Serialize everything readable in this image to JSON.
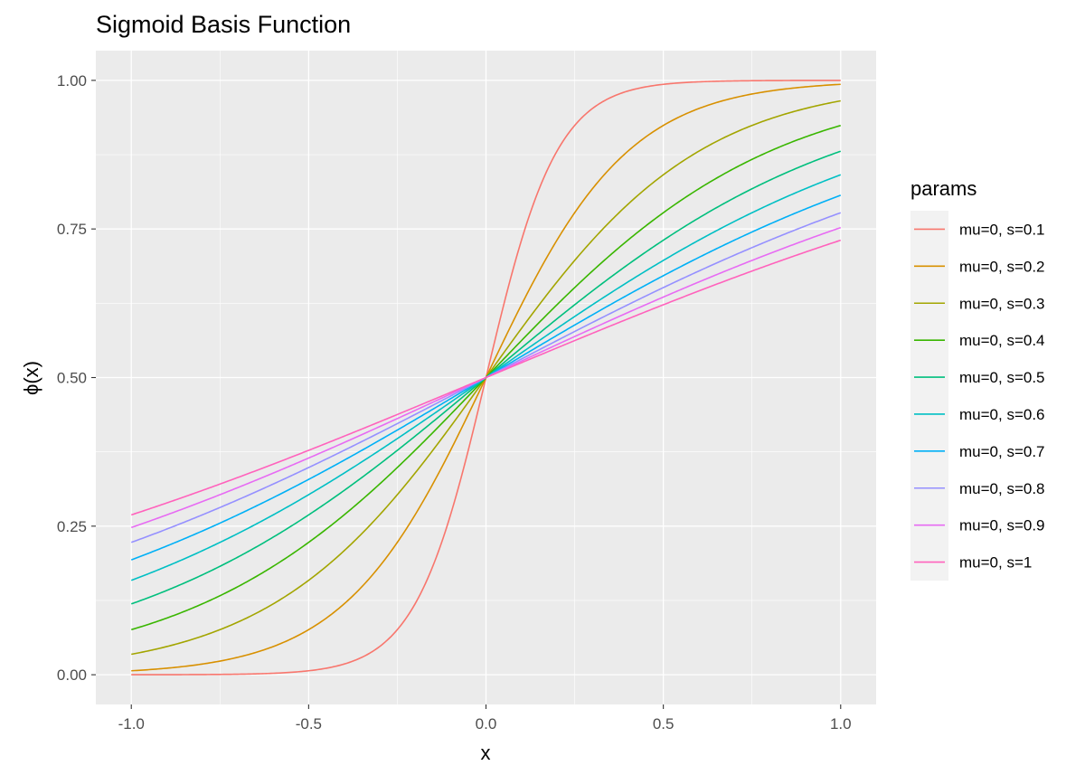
{
  "chart_data": {
    "type": "line",
    "title": "Sigmoid Basis Function",
    "xlabel": "x",
    "ylabel": "ϕ(x)",
    "xlim": [
      -1.1,
      1.1
    ],
    "ylim": [
      -0.05,
      1.05
    ],
    "x_ticks": [
      -1.0,
      -0.5,
      0.0,
      0.5,
      1.0
    ],
    "x_tick_labels": [
      "-1.0",
      "-0.5",
      "0.0",
      "0.5",
      "1.0"
    ],
    "y_ticks": [
      0.0,
      0.25,
      0.5,
      0.75,
      1.0
    ],
    "y_tick_labels": [
      "0.00",
      "0.25",
      "0.50",
      "0.75",
      "1.00"
    ],
    "grid": true,
    "legend": {
      "title": "params",
      "placement": "right"
    },
    "x_range": [
      -1.0,
      1.0
    ],
    "mu": 0,
    "series": [
      {
        "name": "mu=0, s=0.1",
        "s": 0.1,
        "color": "#F8766D"
      },
      {
        "name": "mu=0, s=0.2",
        "s": 0.2,
        "color": "#D89000"
      },
      {
        "name": "mu=0, s=0.3",
        "s": 0.3,
        "color": "#A3A500"
      },
      {
        "name": "mu=0, s=0.4",
        "s": 0.4,
        "color": "#39B600"
      },
      {
        "name": "mu=0, s=0.5",
        "s": 0.5,
        "color": "#00BF7D"
      },
      {
        "name": "mu=0, s=0.6",
        "s": 0.6,
        "color": "#00BFC4"
      },
      {
        "name": "mu=0, s=0.7",
        "s": 0.7,
        "color": "#00B0F6"
      },
      {
        "name": "mu=0, s=0.8",
        "s": 0.8,
        "color": "#9590FF"
      },
      {
        "name": "mu=0, s=0.9",
        "s": 0.9,
        "color": "#E76BF3"
      },
      {
        "name": "mu=0, s=1",
        "s": 1.0,
        "color": "#FF62BC"
      }
    ],
    "panel_background": "#EBEBEB",
    "grid_color": "#FFFFFF"
  }
}
